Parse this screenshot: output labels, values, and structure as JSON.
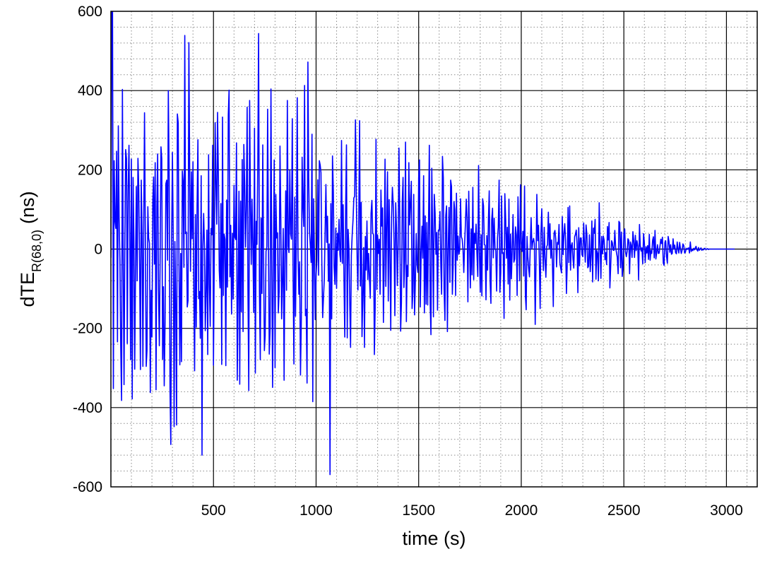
{
  "chart_data": {
    "type": "line",
    "title": "",
    "xlabel": "time (s)",
    "ylabel": {
      "main": "dTE",
      "subscript": "R(68,0)",
      "unit": "(ns)"
    },
    "xlim": [
      0,
      3150
    ],
    "ylim": [
      -600,
      600
    ],
    "x_ticks": [
      500,
      1000,
      1500,
      2000,
      2500,
      3000
    ],
    "x_tick_labels": [
      "500",
      "1000",
      "1500",
      "2000",
      "2500",
      "3000"
    ],
    "y_ticks": [
      -600,
      -400,
      -200,
      0,
      200,
      400,
      600
    ],
    "y_tick_labels": [
      "-600",
      "-400",
      "-200",
      "0",
      "200",
      "400",
      "600"
    ],
    "x_minor_step": 100,
    "y_minor_step": 40,
    "grid": {
      "major": "solid",
      "minor": "dotted"
    },
    "legend": "none",
    "series": [
      {
        "color": "#0000ff",
        "x_start": 0,
        "x_step": 4,
        "values": [
          -22,
          613,
          599,
          -352,
          223,
          71,
          52,
          247,
          -234,
          311,
          80,
          -29,
          -244,
          -382,
          403,
          -7,
          -342,
          29,
          251,
          228,
          -238,
          149,
          262,
          41,
          -279,
          227,
          -378,
          181,
          30,
          -303,
          -40,
          158,
          -80,
          229,
          150,
          -46,
          -304,
          174,
          32,
          -296,
          67,
          344,
          22,
          -296,
          -256,
          107,
          28,
          15,
          -362,
          -104,
          -222,
          121,
          182,
          -38,
          218,
          -355,
          107,
          240,
          -106,
          -244,
          -20,
          258,
          228,
          -278,
          -95,
          -345,
          -185,
          165,
          174,
          -28,
          400,
          178,
          -353,
          -493,
          25,
          244,
          25,
          -448,
          19,
          -144,
          -444,
          341,
          319,
          -37,
          -292,
          -11,
          -284,
          197,
          172,
          -46,
          539,
          39,
          43,
          -146,
          -130,
          521,
          202,
          -56,
          195,
          26,
          220,
          -114,
          -307,
          87,
          -197,
          110,
          276,
          -125,
          -107,
          -225,
          185,
          -520,
          4,
          90,
          5,
          -206,
          -106,
          48,
          -266,
          238,
          -88,
          -195,
          52,
          36,
          262,
          -293,
          -10,
          319,
          166,
          63,
          345,
          181,
          -54,
          -98,
          115,
          -291,
          333,
          -117,
          38,
          25,
          -294,
          124,
          -96,
          339,
          401,
          -70,
          60,
          -164,
          40,
          -126,
          161,
          31,
          24,
          268,
          -331,
          -114,
          146,
          -341,
          121,
          -158,
          226,
          -208,
          264,
          162,
          5,
          99,
          358,
          -98,
          -357,
          375,
          130,
          -38,
          126,
          7,
          -160,
          305,
          -313,
          70,
          12,
          226,
          544,
          -106,
          -279,
          78,
          -112,
          263,
          -21,
          -256,
          -218,
          -6,
          6,
          353,
          10,
          -265,
          -200,
          404,
          -24,
          -349,
          -20,
          225,
          -299,
          138,
          28,
          41,
          -161,
          -108,
          260,
          88,
          -176,
          -82,
          52,
          -331,
          -14,
          147,
          -104,
          375,
          7,
          -9,
          198,
          38,
          25,
          329,
          -61,
          -290,
          131,
          -169,
          32,
          382,
          -19,
          -114,
          -32,
          -318,
          -177,
          232,
          107,
          57,
          413,
          -168,
          -152,
          -338,
          472,
          179,
          44,
          10,
          -34,
          290,
          -385,
          127,
          -19,
          -178,
          -64,
          -31,
          175,
          -66,
          223,
          212,
          193,
          -33,
          -173,
          -125,
          -76,
          48,
          163,
          17,
          83,
          -81,
          13,
          -569,
          115,
          -176,
          235,
          144,
          -44,
          -89,
          53,
          -99,
          40,
          -3,
          75,
          -14,
          -32,
          274,
          -36,
          112,
          -81,
          -222,
          95,
          263,
          -224,
          50,
          2,
          -130,
          -248,
          -16,
          36,
          74,
          129,
          133,
          326,
          141,
          -24,
          -103,
          78,
          324,
          -93,
          118,
          -221,
          -117,
          4,
          -248,
          32,
          -53,
          71,
          -77,
          -11,
          -70,
          -124,
          90,
          123,
          41,
          36,
          -266,
          -148,
          277,
          -102,
          35,
          -11,
          25,
          -114,
          149,
          58,
          104,
          -185,
          -28,
          227,
          -94,
          63,
          195,
          -131,
          125,
          -7,
          -205,
          84,
          156,
          113,
          17,
          -168,
          117,
          55,
          -92,
          11,
          255,
          69,
          -207,
          -135,
          120,
          181,
          -97,
          -29,
          270,
          -183,
          -42,
          -69,
          218,
          61,
          114,
          171,
          -150,
          -108,
          138,
          -166,
          -74,
          39,
          -39,
          -59,
          180,
          225,
          -146,
          -13,
          58,
          -23,
          185,
          -161,
          84,
          -139,
          67,
          -141,
          71,
          262,
          -136,
          -216,
          204,
          35,
          -171,
          138,
          91,
          -13,
          42,
          -154,
          48,
          48,
          95,
          -42,
          -114,
          234,
          180,
          -101,
          -180,
          85,
          109,
          -208,
          -2,
          105,
          -84,
          174,
          158,
          -114,
          -46,
          120,
          100,
          -117,
          141,
          -28,
          33,
          -13,
          -3,
          127,
          31,
          25,
          -2,
          -59,
          14,
          64,
          126,
          69,
          -133,
          146,
          4,
          -98,
          51,
          -65,
          156,
          -77,
          40,
          14,
          63,
          -11,
          -69,
          211,
          -5,
          -109,
          36,
          -118,
          127,
          109,
          11,
          10,
          -128,
          34,
          -53,
          77,
          147,
          -80,
          -137,
          74,
          103,
          -22,
          78,
          1,
          -4,
          -106,
          28,
          55,
          174,
          -109,
          -59,
          134,
          -11,
          -9,
          -175,
          140,
          74,
          -23,
          55,
          -88,
          126,
          -129,
          38,
          -75,
          3,
          87,
          -33,
          -25,
          56,
          36,
          -117,
          132,
          23,
          -80,
          162,
          15,
          -6,
          45,
          -68,
          159,
          -117,
          -153,
          32,
          -18,
          -48,
          -70,
          9,
          79,
          0,
          18,
          27,
          14,
          -190,
          -20,
          138,
          21,
          60,
          -27,
          -150,
          38,
          102,
          4,
          -54,
          55,
          -22,
          -71,
          6,
          11,
          93,
          0,
          64,
          -23,
          23,
          -36,
          -145,
          40,
          47,
          25,
          -45,
          17,
          12,
          62,
          -34,
          -47,
          -60,
          82,
          -14,
          39,
          64,
          21,
          -112,
          -41,
          105,
          -34,
          109,
          -53,
          8,
          16,
          -26,
          -48,
          31,
          37,
          48,
          13,
          -110,
          54,
          -42,
          28,
          28,
          -14,
          -19,
          66,
          14,
          -33,
          61,
          36,
          -47,
          -43,
          36,
          -57,
          -17,
          71,
          -83,
          53,
          40,
          75,
          -76,
          -3,
          -11,
          -80,
          117,
          15,
          -74,
          32,
          -12,
          33,
          22,
          -27,
          -9,
          -39,
          57,
          23,
          67,
          -98,
          -41,
          21,
          16,
          -3,
          -3,
          47,
          3,
          -8,
          -21,
          -62,
          70,
          66,
          -47,
          43,
          -69,
          -46,
          39,
          51,
          -7,
          -19,
          -6,
          26,
          22,
          -62,
          18,
          10,
          -21,
          44,
          22,
          -21,
          35,
          -4,
          21,
          8,
          -78,
          62,
          9,
          -5,
          3,
          -37,
          39,
          17,
          -34,
          6,
          -10,
          9,
          -26,
          37,
          -28,
          -4,
          -11,
          22,
          31,
          -22,
          47,
          -25,
          -8,
          11,
          -11,
          -10,
          7,
          25,
          14,
          30,
          -35,
          -41,
          17,
          21,
          -18,
          -36,
          32,
          19,
          -8,
          11,
          -13,
          -11,
          26,
          0,
          10,
          -9,
          -12,
          18,
          0,
          -10,
          17,
          0,
          -11,
          -3,
          13,
          9,
          -10,
          -8,
          2,
          -1,
          2,
          3,
          -10,
          18,
          -6,
          -1,
          -4,
          2,
          -2,
          3,
          7,
          -2,
          -5,
          4,
          -3,
          0,
          3,
          -3,
          -1,
          -2,
          2,
          1,
          -1,
          0,
          1,
          -1,
          0,
          0,
          0,
          0,
          0,
          0,
          0,
          0,
          0,
          0,
          0,
          0,
          0,
          0,
          0,
          0,
          0,
          0,
          0,
          0,
          0,
          0,
          0,
          0,
          0,
          0,
          0,
          0,
          0,
          0,
          0,
          0
        ]
      }
    ]
  }
}
